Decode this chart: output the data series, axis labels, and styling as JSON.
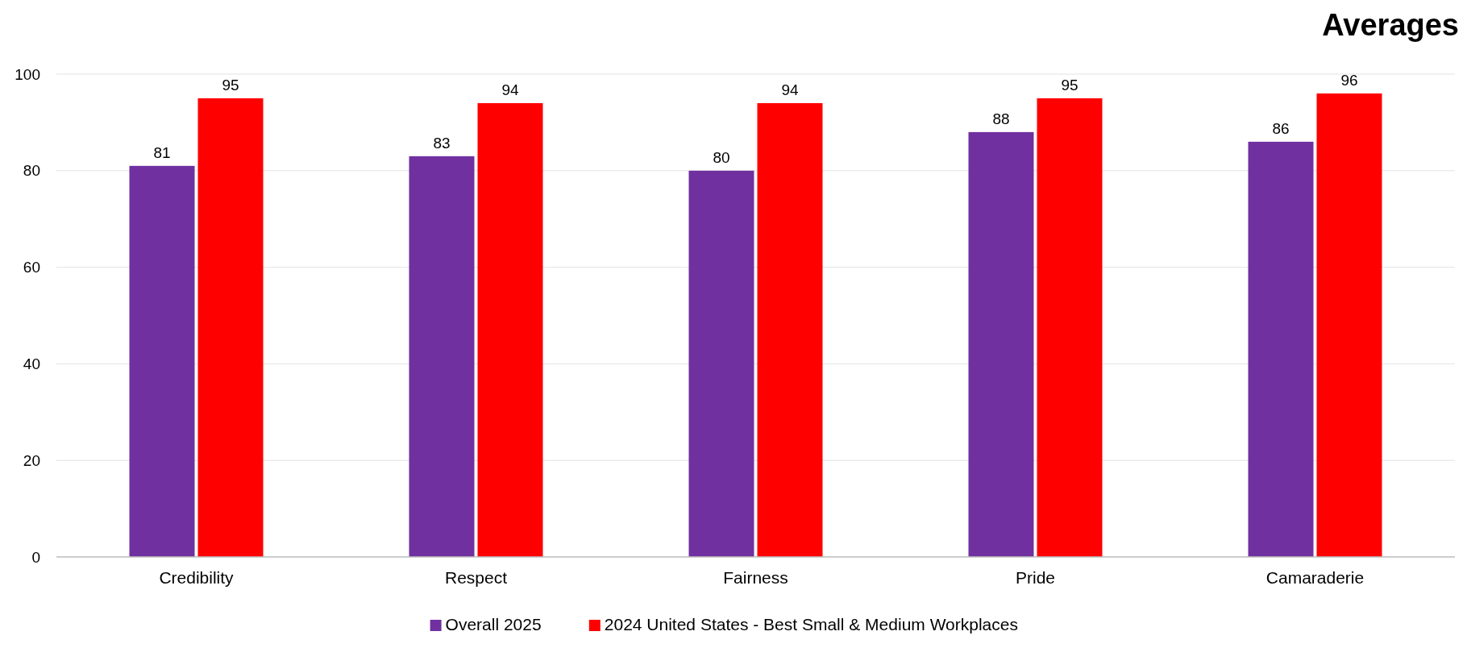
{
  "chart_data": {
    "type": "bar",
    "title": "Averages",
    "categories": [
      "Credibility",
      "Respect",
      "Fairness",
      "Pride",
      "Camaraderie"
    ],
    "series": [
      {
        "name": "Overall 2025",
        "color": "#7030a0",
        "values": [
          81,
          83,
          80,
          88,
          86
        ]
      },
      {
        "name": "2024 United States - Best Small & Medium Workplaces",
        "color": "#ff0000",
        "values": [
          95,
          94,
          94,
          95,
          96
        ]
      }
    ],
    "ylim": [
      0,
      100
    ],
    "yticks": [
      0,
      20,
      40,
      60,
      80,
      100
    ],
    "grid": "y",
    "legend": "bottom",
    "data_labels": true
  }
}
